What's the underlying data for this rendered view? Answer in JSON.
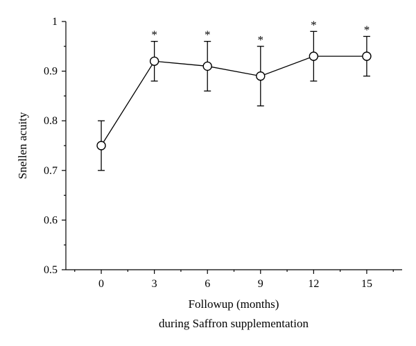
{
  "chart_data": {
    "type": "line",
    "title": "",
    "xlabel": "Followup (months)",
    "xlabel_line2": "during Saffron supplementation",
    "ylabel": "Snellen acuity",
    "x": [
      0,
      3,
      6,
      9,
      12,
      15
    ],
    "xticks": [
      "0",
      "3",
      "6",
      "9",
      "12",
      "15"
    ],
    "xlim": [
      -2,
      17
    ],
    "ylim": [
      0.5,
      1.0
    ],
    "yticks": [
      "0.5",
      "0.6",
      "0.7",
      "0.8",
      "0.9",
      "1"
    ],
    "series": [
      {
        "values": [
          0.75,
          0.92,
          0.91,
          0.89,
          0.93,
          0.93
        ],
        "error_low": [
          0.7,
          0.88,
          0.86,
          0.83,
          0.88,
          0.89
        ],
        "error_high": [
          0.8,
          0.96,
          0.96,
          0.95,
          0.98,
          0.97
        ],
        "significance": [
          "",
          "*",
          "*",
          "*",
          "*",
          "*"
        ]
      }
    ],
    "grid": false,
    "marker": "open-circle"
  }
}
